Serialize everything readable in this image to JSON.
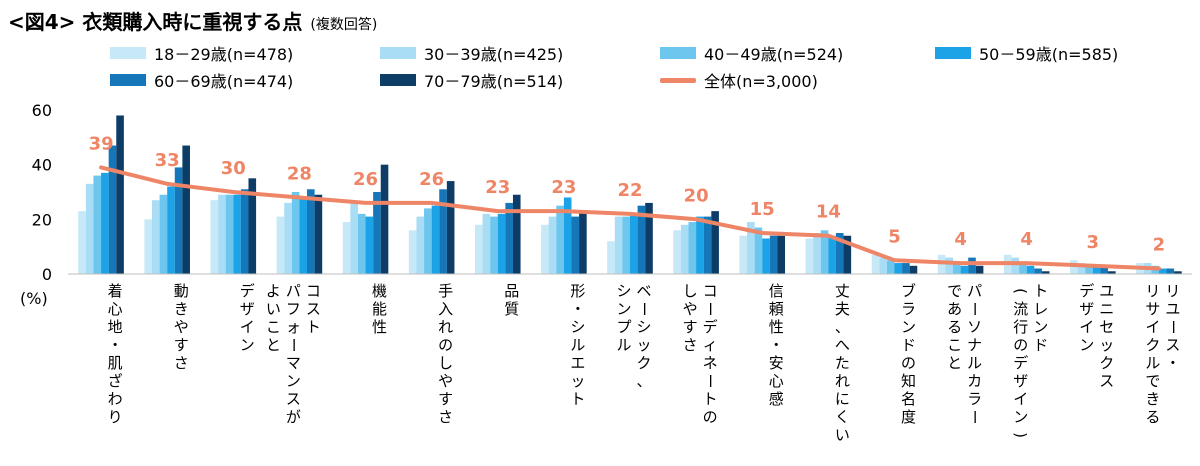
{
  "header": {
    "title": "<図4> 衣類購入時に重視する点",
    "subtitle": "(複数回答)"
  },
  "colors": {
    "series": [
      "#c6e8f7",
      "#a9dcf5",
      "#6cc6ee",
      "#1ca2e6",
      "#1577b8",
      "#0d3d66"
    ],
    "total_line": "#ee8566",
    "total_label": "#ee8566"
  },
  "chart_data": {
    "type": "bar",
    "title": "<図4> 衣類購入時に重視する点",
    "subtitle": "(複数回答)",
    "ylabel": "(%)",
    "ylim": [
      0,
      60
    ],
    "yticks": [
      0,
      20,
      40,
      60
    ],
    "grid": false,
    "legend_position": "top",
    "categories": [
      "着心地・肌ざわり",
      "動きやすさ",
      "デザイン",
      "コスト\nパフォーマンスが\nよいこと",
      "機能性",
      "手入れのしやすさ",
      "品質",
      "形・シルエット",
      "ベーシック、\nシンプル",
      "コーディネートの\nしやすさ",
      "信頼性・安心感",
      "丈夫、へたれにくい",
      "ブランドの知名度",
      "パーソナルカラー\nであること",
      "トレンド\n(流行のデザイン)",
      "ユニセックス\nデザイン",
      "リユース・\nリサイクルできる"
    ],
    "series": [
      {
        "name": "18－29歳(n=478)",
        "values": [
          23,
          20,
          27,
          21,
          19,
          16,
          18,
          18,
          12,
          16,
          14,
          13,
          7,
          7,
          7,
          5,
          4
        ]
      },
      {
        "name": "30－39歳(n=425)",
        "values": [
          33,
          27,
          29,
          26,
          26,
          21,
          22,
          21,
          21,
          18,
          19,
          15,
          6,
          6,
          6,
          4,
          4
        ]
      },
      {
        "name": "40－49歳(n=524)",
        "values": [
          36,
          29,
          29,
          30,
          22,
          24,
          21,
          25,
          21,
          19,
          17,
          16,
          5,
          4,
          4,
          3,
          3
        ]
      },
      {
        "name": "50－59歳(n=585)",
        "values": [
          37,
          32,
          29,
          28,
          21,
          25,
          22,
          28,
          22,
          21,
          13,
          14,
          4,
          3,
          3,
          3,
          2
        ]
      },
      {
        "name": "60－69歳(n=474)",
        "values": [
          47,
          39,
          31,
          31,
          30,
          31,
          26,
          21,
          25,
          21,
          14,
          15,
          4,
          6,
          2,
          3,
          2
        ]
      },
      {
        "name": "70－79歳(n=514)",
        "values": [
          58,
          47,
          35,
          29,
          40,
          34,
          29,
          23,
          26,
          23,
          14,
          14,
          3,
          3,
          1,
          1,
          1
        ]
      }
    ],
    "total": {
      "name": "全体(n=3,000)",
      "type": "line",
      "values": [
        39,
        33,
        30,
        28,
        26,
        26,
        23,
        23,
        22,
        20,
        15,
        14,
        5,
        4,
        4,
        3,
        2
      ],
      "labels": [
        "39",
        "33",
        "30",
        "28",
        "26",
        "26",
        "23",
        "23",
        "22",
        "20",
        "15",
        "14",
        "5",
        "4",
        "4",
        "3",
        "2"
      ]
    }
  }
}
